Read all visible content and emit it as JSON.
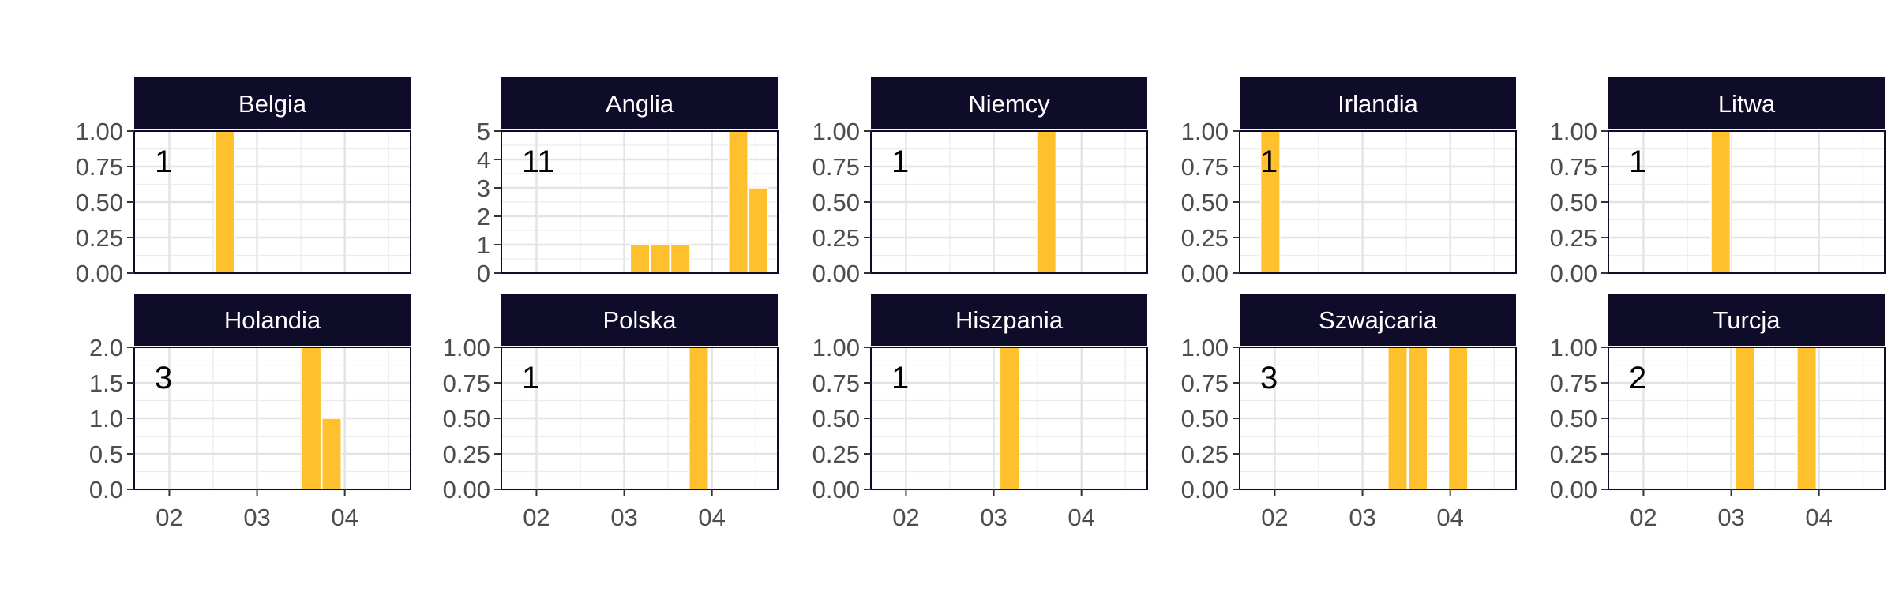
{
  "chart_data": {
    "type": "bar",
    "layout": "faceted 2x5 grid, free y scales",
    "bar_color": "#FFC02E",
    "strip_color": "#0E0C29",
    "panel_border_color": "#0E0C29",
    "grid": true,
    "x_ticks": [
      "02",
      "03",
      "04"
    ],
    "x_tick_values": [
      2,
      3,
      4
    ],
    "xlim": [
      1.6,
      4.75
    ],
    "bar_width": 0.22,
    "panels": [
      {
        "name": "Belgia",
        "count_label": "1",
        "ylim": [
          0,
          1
        ],
        "y_ticks": [
          "0.00",
          "0.25",
          "0.50",
          "0.75",
          "1.00"
        ],
        "bars": [
          {
            "x": 2.63,
            "y": 1
          }
        ]
      },
      {
        "name": "Anglia",
        "count_label": "11",
        "ylim": [
          0,
          5
        ],
        "y_ticks": [
          "0",
          "1",
          "2",
          "3",
          "4",
          "5"
        ],
        "bars": [
          {
            "x": 3.18,
            "y": 1
          },
          {
            "x": 3.41,
            "y": 1
          },
          {
            "x": 3.64,
            "y": 1
          },
          {
            "x": 4.3,
            "y": 5
          },
          {
            "x": 4.53,
            "y": 3
          }
        ]
      },
      {
        "name": "Niemcy",
        "count_label": "1",
        "ylim": [
          0,
          1
        ],
        "y_ticks": [
          "0.00",
          "0.25",
          "0.50",
          "0.75",
          "1.00"
        ],
        "bars": [
          {
            "x": 3.6,
            "y": 1
          }
        ]
      },
      {
        "name": "Irlandia",
        "count_label": "1",
        "ylim": [
          0,
          1
        ],
        "y_ticks": [
          "0.00",
          "0.25",
          "0.50",
          "0.75",
          "1.00"
        ],
        "bars": [
          {
            "x": 1.95,
            "y": 1
          }
        ]
      },
      {
        "name": "Litwa",
        "count_label": "1",
        "ylim": [
          0,
          1
        ],
        "y_ticks": [
          "0.00",
          "0.25",
          "0.50",
          "0.75",
          "1.00"
        ],
        "bars": [
          {
            "x": 2.88,
            "y": 1
          }
        ]
      },
      {
        "name": "Holandia",
        "count_label": "3",
        "ylim": [
          0,
          2
        ],
        "y_ticks": [
          "0.0",
          "0.5",
          "1.0",
          "1.5",
          "2.0"
        ],
        "bars": [
          {
            "x": 3.62,
            "y": 2
          },
          {
            "x": 3.85,
            "y": 1
          }
        ]
      },
      {
        "name": "Polska",
        "count_label": "1",
        "ylim": [
          0,
          1
        ],
        "y_ticks": [
          "0.00",
          "0.25",
          "0.50",
          "0.75",
          "1.00"
        ],
        "bars": [
          {
            "x": 3.85,
            "y": 1
          }
        ]
      },
      {
        "name": "Hiszpania",
        "count_label": "1",
        "ylim": [
          0,
          1
        ],
        "y_ticks": [
          "0.00",
          "0.25",
          "0.50",
          "0.75",
          "1.00"
        ],
        "bars": [
          {
            "x": 3.18,
            "y": 1
          }
        ]
      },
      {
        "name": "Szwajcaria",
        "count_label": "3",
        "ylim": [
          0,
          1
        ],
        "y_ticks": [
          "0.00",
          "0.25",
          "0.50",
          "0.75",
          "1.00"
        ],
        "bars": [
          {
            "x": 3.4,
            "y": 1
          },
          {
            "x": 3.63,
            "y": 1
          },
          {
            "x": 4.09,
            "y": 1
          }
        ]
      },
      {
        "name": "Turcja",
        "count_label": "2",
        "ylim": [
          0,
          1
        ],
        "y_ticks": [
          "0.00",
          "0.25",
          "0.50",
          "0.75",
          "1.00"
        ],
        "bars": [
          {
            "x": 3.16,
            "y": 1
          },
          {
            "x": 3.86,
            "y": 1
          }
        ]
      }
    ]
  }
}
